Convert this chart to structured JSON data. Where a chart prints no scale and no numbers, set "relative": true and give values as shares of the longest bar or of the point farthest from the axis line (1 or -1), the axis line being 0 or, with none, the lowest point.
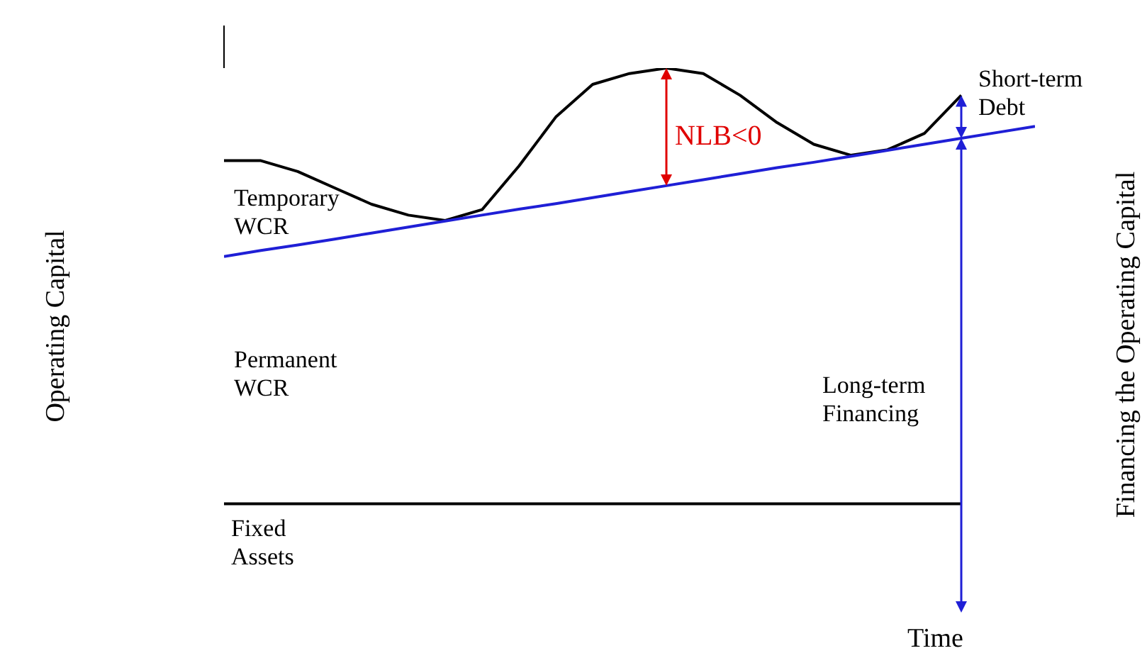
{
  "chart_data": {
    "type": "line",
    "relative": true,
    "xlabel": "Time",
    "ylabel": "Operating Capital",
    "y2label": "Financing the Operating Capital",
    "marker": "none",
    "line_style": "solid",
    "categories": [
      null,
      null,
      null,
      null,
      null,
      null,
      null,
      null,
      null,
      null,
      null,
      null,
      null,
      null,
      null,
      null,
      null,
      null,
      null,
      null,
      null,
      null,
      null
    ],
    "series": [
      {
        "color": "#000000",
        "values": [
          0.83,
          0.83,
          0.81,
          0.78,
          0.75,
          0.73,
          0.72,
          0.74,
          0.82,
          0.91,
          0.97,
          0.99,
          1,
          0.99,
          0.95,
          0.9,
          0.86,
          0.84,
          0.85,
          0.88,
          0.95,
          null,
          null
        ]
      },
      {
        "color": "#1f1fd6",
        "values": [
          0.654,
          0.665,
          0.675,
          0.686,
          0.697,
          0.708,
          0.719,
          0.73,
          0.741,
          0.751,
          0.762,
          0.773,
          0.784,
          0.795,
          0.806,
          0.817,
          0.827,
          0.838,
          0.849,
          0.86,
          0.871,
          0.882,
          0.893
        ]
      },
      {
        "color": "#000000",
        "values": [
          0.2,
          0.2,
          0.2,
          0.2,
          0.2,
          0.2,
          0.2,
          0.2,
          0.2,
          0.2,
          0.2,
          0.2,
          0.2,
          0.2,
          0.2,
          0.2,
          0.2,
          0.2,
          0.2,
          0.2,
          0.2,
          null,
          null
        ]
      }
    ],
    "annotations": [
      "Temporary\nWCR",
      "Permanent\nWCR",
      "Fixed\nAssets",
      "NLB<0",
      "Long-term\nFinancing",
      "Short-term\nDebt"
    ]
  }
}
